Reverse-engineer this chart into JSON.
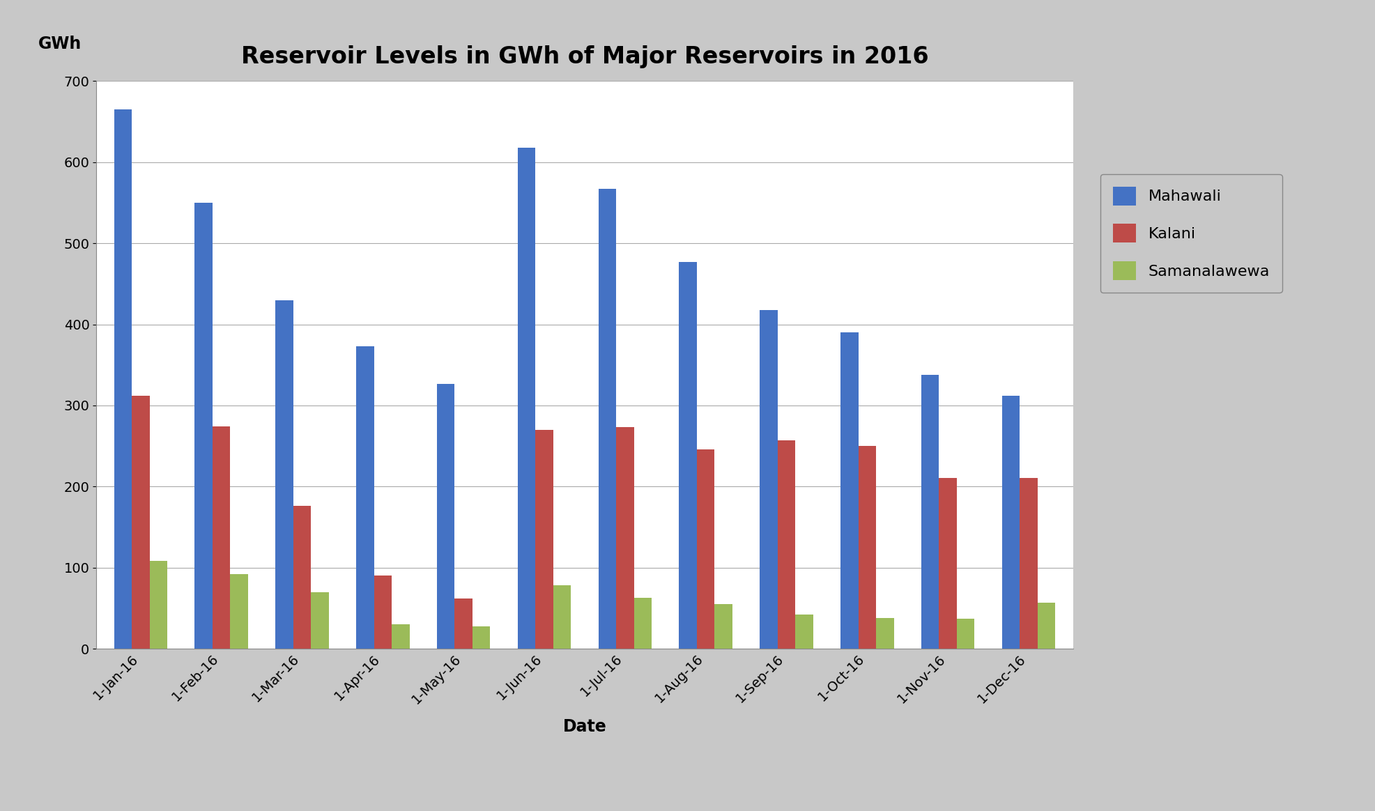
{
  "title": "Reservoir Levels in GWh of Major Reservoirs in 2016",
  "xlabel": "Date",
  "ylabel": "GWh",
  "background_color": "#c8c8c8",
  "plot_bg_color": "#ffffff",
  "categories": [
    "1-Jan-16",
    "1-Feb-16",
    "1-Mar-16",
    "1-Apr-16",
    "1-May-16",
    "1-Jun-16",
    "1-Jul-16",
    "1-Aug-16",
    "1-Sep-16",
    "1-Oct-16",
    "1-Nov-16",
    "1-Dec-16"
  ],
  "series": {
    "Mahawali": [
      665,
      550,
      430,
      373,
      327,
      618,
      567,
      477,
      418,
      390,
      338,
      312
    ],
    "Kalani": [
      312,
      274,
      176,
      90,
      62,
      270,
      273,
      246,
      257,
      250,
      211,
      211
    ],
    "Samanalawewa": [
      108,
      92,
      70,
      30,
      28,
      78,
      63,
      55,
      42,
      38,
      37,
      57
    ]
  },
  "series_colors": {
    "Mahawali": "#4472C4",
    "Kalani": "#BE4B48",
    "Samanalawewa": "#9BBB59"
  },
  "ylim": [
    0,
    700
  ],
  "yticks": [
    0,
    100,
    200,
    300,
    400,
    500,
    600,
    700
  ],
  "title_fontsize": 24,
  "axis_label_fontsize": 17,
  "tick_fontsize": 14,
  "legend_fontsize": 16,
  "bar_width": 0.22
}
